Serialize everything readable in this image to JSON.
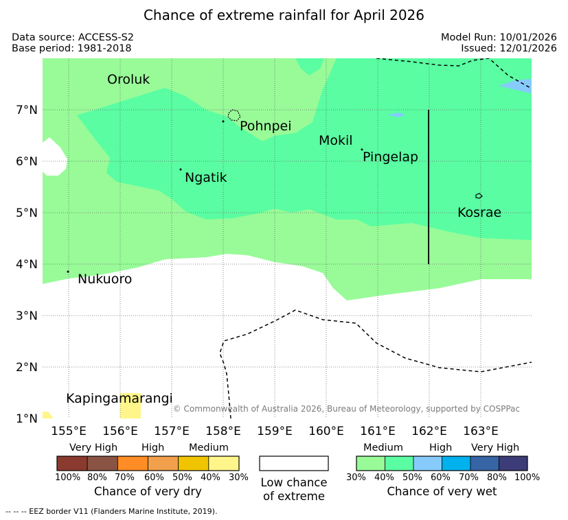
{
  "title": "Chance of extreme rainfall for April 2026",
  "header": {
    "data_source": "Data source: ACCESS-S2",
    "base_period": "Base period: 1981-2018",
    "model_run": "Model Run: 10/01/2026",
    "issued": "Issued: 12/01/2026"
  },
  "map": {
    "lon_ticks": [
      "155°E",
      "156°E",
      "157°E",
      "158°E",
      "159°E",
      "160°E",
      "161°E",
      "162°E",
      "163°E"
    ],
    "lat_ticks": [
      "7°N",
      "6°N",
      "5°N",
      "4°N",
      "3°N",
      "2°N",
      "1°N"
    ],
    "places": {
      "oroluk": "Oroluk",
      "pohnpei": "Pohnpei",
      "mokil": "Mokil",
      "pingelap": "Pingelap",
      "ngatik": "Ngatik",
      "kosrae": "Kosrae",
      "nukuoro": "Nukuoro",
      "kapingamarangi": "Kapingamarangi"
    },
    "copyright": "© Commonwealth of Australia 2026, Bureau of Meteorology, supported by COSPPac"
  },
  "legend": {
    "dry": {
      "levels": [
        "Very High",
        "High",
        "Medium"
      ],
      "ticks": [
        "100%",
        "80%",
        "70%",
        "60%",
        "50%",
        "40%",
        "30%"
      ],
      "colors": [
        "#8b3a2f",
        "#8a5444",
        "#ff8c24",
        "#f2a04c",
        "#f0c400",
        "#fef68a"
      ],
      "caption": "Chance of very dry"
    },
    "low": {
      "line1": "Low chance",
      "line2": "of extreme"
    },
    "wet": {
      "levels": [
        "Medium",
        "High",
        "Very High"
      ],
      "ticks": [
        "30%",
        "40%",
        "50%",
        "60%",
        "70%",
        "80%",
        "100%"
      ],
      "colors": [
        "#98fb98",
        "#5afda2",
        "#86cbfb",
        "#00b1ee",
        "#3764a4",
        "#3c3c78"
      ],
      "caption": "Chance of very wet"
    }
  },
  "footer": {
    "eez_note": "--  --  -- EEZ border V11 (Flanders Marine Institute, 2019)."
  }
}
